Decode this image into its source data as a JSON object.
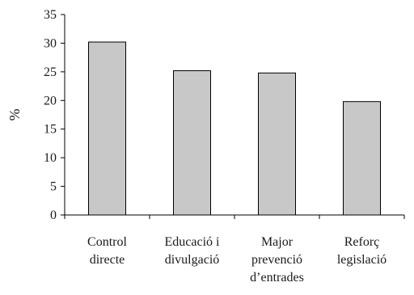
{
  "chart_data": {
    "type": "bar",
    "categories": [
      [
        "Control",
        "directe"
      ],
      [
        "Educació i",
        "divulgació"
      ],
      [
        "Major",
        "prevenció",
        "d’entrades"
      ],
      [
        "Reforç",
        "legislació"
      ]
    ],
    "values": [
      30.2,
      25.2,
      24.8,
      19.8
    ],
    "title": "",
    "xlabel": "",
    "ylabel": "%",
    "ylim": [
      0,
      35
    ],
    "yticks": [
      0,
      5,
      10,
      15,
      20,
      25,
      30,
      35
    ],
    "grid": false,
    "legend": "none",
    "bar_fill": "#c8c8c8",
    "bar_stroke": "#000000"
  }
}
